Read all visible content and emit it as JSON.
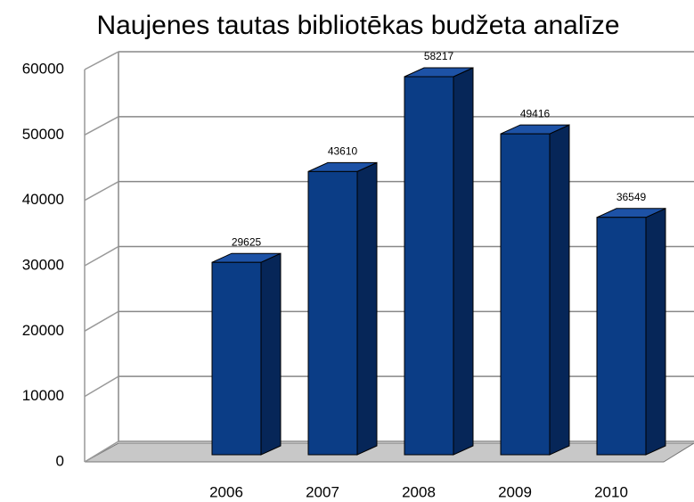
{
  "chart_data": {
    "type": "bar3d",
    "title": "Naujenes tautas bibliotēkas budžeta analīze",
    "categories": [
      "2006",
      "2007",
      "2008",
      "2009",
      "2010"
    ],
    "values": [
      29625,
      43610,
      58217,
      49416,
      36549
    ],
    "color": "#0b3d86",
    "ylim": [
      0,
      60000
    ],
    "yticks": [
      0,
      10000,
      20000,
      30000,
      40000,
      50000,
      60000
    ],
    "grid": true
  }
}
